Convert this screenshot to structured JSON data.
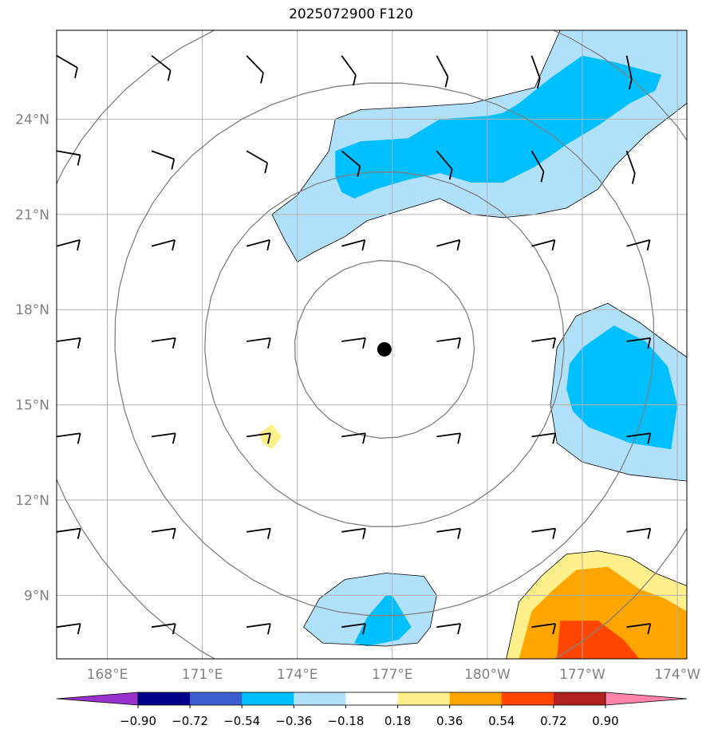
{
  "title": "2025072900 F120",
  "map": {
    "lon_range": [
      166.4,
      186.3
    ],
    "lat_range": [
      7.0,
      26.8
    ],
    "center": {
      "lon": 176.75,
      "lat": 16.75
    },
    "lon_ticks": [
      168,
      171,
      174,
      177,
      180,
      183,
      186
    ],
    "lon_tick_labels": [
      "168°E",
      "171°E",
      "174°E",
      "177°E",
      "180°W",
      "177°W",
      "174°W"
    ],
    "lat_ticks": [
      9,
      12,
      15,
      18,
      21,
      24
    ],
    "lat_tick_labels": [
      "9°N",
      "12°N",
      "15°N",
      "18°N",
      "21°N",
      "24°N"
    ],
    "range_rings_deg": [
      2.8,
      5.6,
      8.4,
      11.2
    ],
    "grid": true
  },
  "colorbar": {
    "tick_labels": [
      "−0.90",
      "−0.72",
      "−0.54",
      "−0.36",
      "−0.18",
      "0.18",
      "0.36",
      "0.54",
      "0.72",
      "0.90"
    ],
    "colors": [
      "#9932cc",
      "#00008b",
      "#3a5fcd",
      "#00bfff",
      "#b0e0fa",
      "#ffffff",
      "#fff08c",
      "#ffa500",
      "#ff4500",
      "#b22222",
      "#ff82ab"
    ]
  },
  "colors": {
    "light_blue": "#b0e0fa",
    "blue": "#00bfff",
    "light_yellow": "#fff08c",
    "orange": "#ffa500",
    "red_orange": "#ff4500",
    "grid": "#b0b0b0",
    "ring": "#808080"
  },
  "shaded_regions": [
    {
      "name": "north-band-outer",
      "color": "#b0e0fa",
      "lonlat": [
        [
          173.2,
          21.0
        ],
        [
          174.0,
          21.6
        ],
        [
          175.0,
          23.0
        ],
        [
          175.2,
          24.0
        ],
        [
          176.0,
          24.3
        ],
        [
          178.0,
          24.4
        ],
        [
          179.5,
          24.5
        ],
        [
          181.5,
          25.0
        ],
        [
          182.3,
          26.8
        ],
        [
          186.3,
          26.8
        ],
        [
          186.3,
          24.5
        ],
        [
          185.0,
          23.5
        ],
        [
          184.0,
          22.5
        ],
        [
          183.5,
          21.8
        ],
        [
          182.5,
          21.2
        ],
        [
          181.5,
          21.0
        ],
        [
          180.5,
          20.9
        ],
        [
          179.5,
          21.0
        ],
        [
          178.5,
          21.5
        ],
        [
          177.5,
          21.2
        ],
        [
          176.2,
          20.8
        ],
        [
          175.5,
          20.3
        ],
        [
          174.5,
          19.8
        ],
        [
          174.0,
          19.5
        ],
        [
          173.6,
          20.2
        ]
      ]
    },
    {
      "name": "north-band-inner",
      "color": "#00bfff",
      "lonlat": [
        [
          175.2,
          22.2
        ],
        [
          175.2,
          23.0
        ],
        [
          176.0,
          23.3
        ],
        [
          177.5,
          23.4
        ],
        [
          178.5,
          24.0
        ],
        [
          180.0,
          24.1
        ],
        [
          180.5,
          24.2
        ],
        [
          181.0,
          24.5
        ],
        [
          182.0,
          25.3
        ],
        [
          183.0,
          26.0
        ],
        [
          184.0,
          25.8
        ],
        [
          185.5,
          25.4
        ],
        [
          185.3,
          24.9
        ],
        [
          184.5,
          24.5
        ],
        [
          183.5,
          23.8
        ],
        [
          182.5,
          23.2
        ],
        [
          181.5,
          22.5
        ],
        [
          180.5,
          22.0
        ],
        [
          179.5,
          22.0
        ],
        [
          178.5,
          22.3
        ],
        [
          177.5,
          22.1
        ],
        [
          176.5,
          21.8
        ],
        [
          175.8,
          21.5
        ],
        [
          175.4,
          21.7
        ]
      ]
    },
    {
      "name": "east-outer",
      "color": "#b0e0fa",
      "lonlat": [
        [
          182.2,
          16.8
        ],
        [
          182.8,
          17.8
        ],
        [
          183.8,
          18.2
        ],
        [
          184.8,
          17.6
        ],
        [
          185.6,
          17.0
        ],
        [
          186.3,
          16.5
        ],
        [
          186.3,
          12.6
        ],
        [
          184.5,
          12.8
        ],
        [
          183.0,
          13.2
        ],
        [
          182.2,
          13.8
        ],
        [
          182.0,
          15.0
        ]
      ]
    },
    {
      "name": "east-inner",
      "color": "#00bfff",
      "lonlat": [
        [
          182.6,
          16.3
        ],
        [
          183.0,
          16.8
        ],
        [
          184.0,
          17.5
        ],
        [
          185.0,
          17.0
        ],
        [
          185.7,
          16.2
        ],
        [
          186.0,
          15.0
        ],
        [
          185.8,
          13.6
        ],
        [
          184.5,
          13.8
        ],
        [
          183.2,
          14.3
        ],
        [
          182.7,
          14.8
        ],
        [
          182.5,
          15.5
        ]
      ]
    },
    {
      "name": "south-blue-outer",
      "color": "#b0e0fa",
      "lonlat": [
        [
          174.2,
          8.0
        ],
        [
          174.7,
          8.9
        ],
        [
          175.5,
          9.5
        ],
        [
          176.8,
          9.7
        ],
        [
          178.0,
          9.6
        ],
        [
          178.4,
          9.0
        ],
        [
          178.2,
          8.0
        ],
        [
          177.8,
          7.5
        ],
        [
          176.8,
          7.4
        ],
        [
          174.8,
          7.5
        ]
      ]
    },
    {
      "name": "south-blue-inner",
      "color": "#00bfff",
      "lonlat": [
        [
          175.8,
          7.5
        ],
        [
          176.2,
          8.3
        ],
        [
          176.8,
          9.0
        ],
        [
          177.0,
          9.0
        ],
        [
          177.6,
          8.0
        ],
        [
          177.2,
          7.6
        ],
        [
          176.2,
          7.4
        ]
      ]
    },
    {
      "name": "south-yellow-outer",
      "color": "#fff08c",
      "lonlat": [
        [
          180.6,
          7.0
        ],
        [
          181.0,
          8.8
        ],
        [
          181.7,
          9.6
        ],
        [
          182.5,
          10.3
        ],
        [
          183.5,
          10.4
        ],
        [
          184.5,
          10.2
        ],
        [
          185.3,
          9.7
        ],
        [
          186.3,
          9.3
        ],
        [
          186.3,
          7.0
        ]
      ]
    },
    {
      "name": "south-orange",
      "color": "#ffa500",
      "lonlat": [
        [
          181.0,
          7.0
        ],
        [
          181.4,
          8.5
        ],
        [
          182.0,
          9.1
        ],
        [
          182.8,
          9.8
        ],
        [
          183.8,
          9.9
        ],
        [
          184.8,
          9.2
        ],
        [
          185.6,
          8.9
        ],
        [
          186.3,
          8.5
        ],
        [
          186.3,
          7.0
        ]
      ]
    },
    {
      "name": "south-redorange",
      "color": "#ff4500",
      "lonlat": [
        [
          182.2,
          7.0
        ],
        [
          182.3,
          8.2
        ],
        [
          183.5,
          8.2
        ],
        [
          184.3,
          7.6
        ],
        [
          184.8,
          7.0
        ]
      ]
    },
    {
      "name": "small-yellow-patch",
      "color": "#fff08c",
      "lonlat": [
        [
          172.8,
          14.1
        ],
        [
          173.2,
          14.4
        ],
        [
          173.5,
          14.0
        ],
        [
          173.2,
          13.6
        ],
        [
          172.9,
          13.8
        ]
      ]
    }
  ],
  "storm_center": {
    "lon": 176.75,
    "lat": 16.75
  },
  "barb_rows_lat": [
    26.0,
    23.0,
    20.0,
    17.0,
    14.0,
    11.0,
    8.0
  ],
  "barb_cols_lon": [
    166.4,
    169.4,
    172.4,
    175.4,
    178.4,
    181.4,
    184.4
  ]
}
